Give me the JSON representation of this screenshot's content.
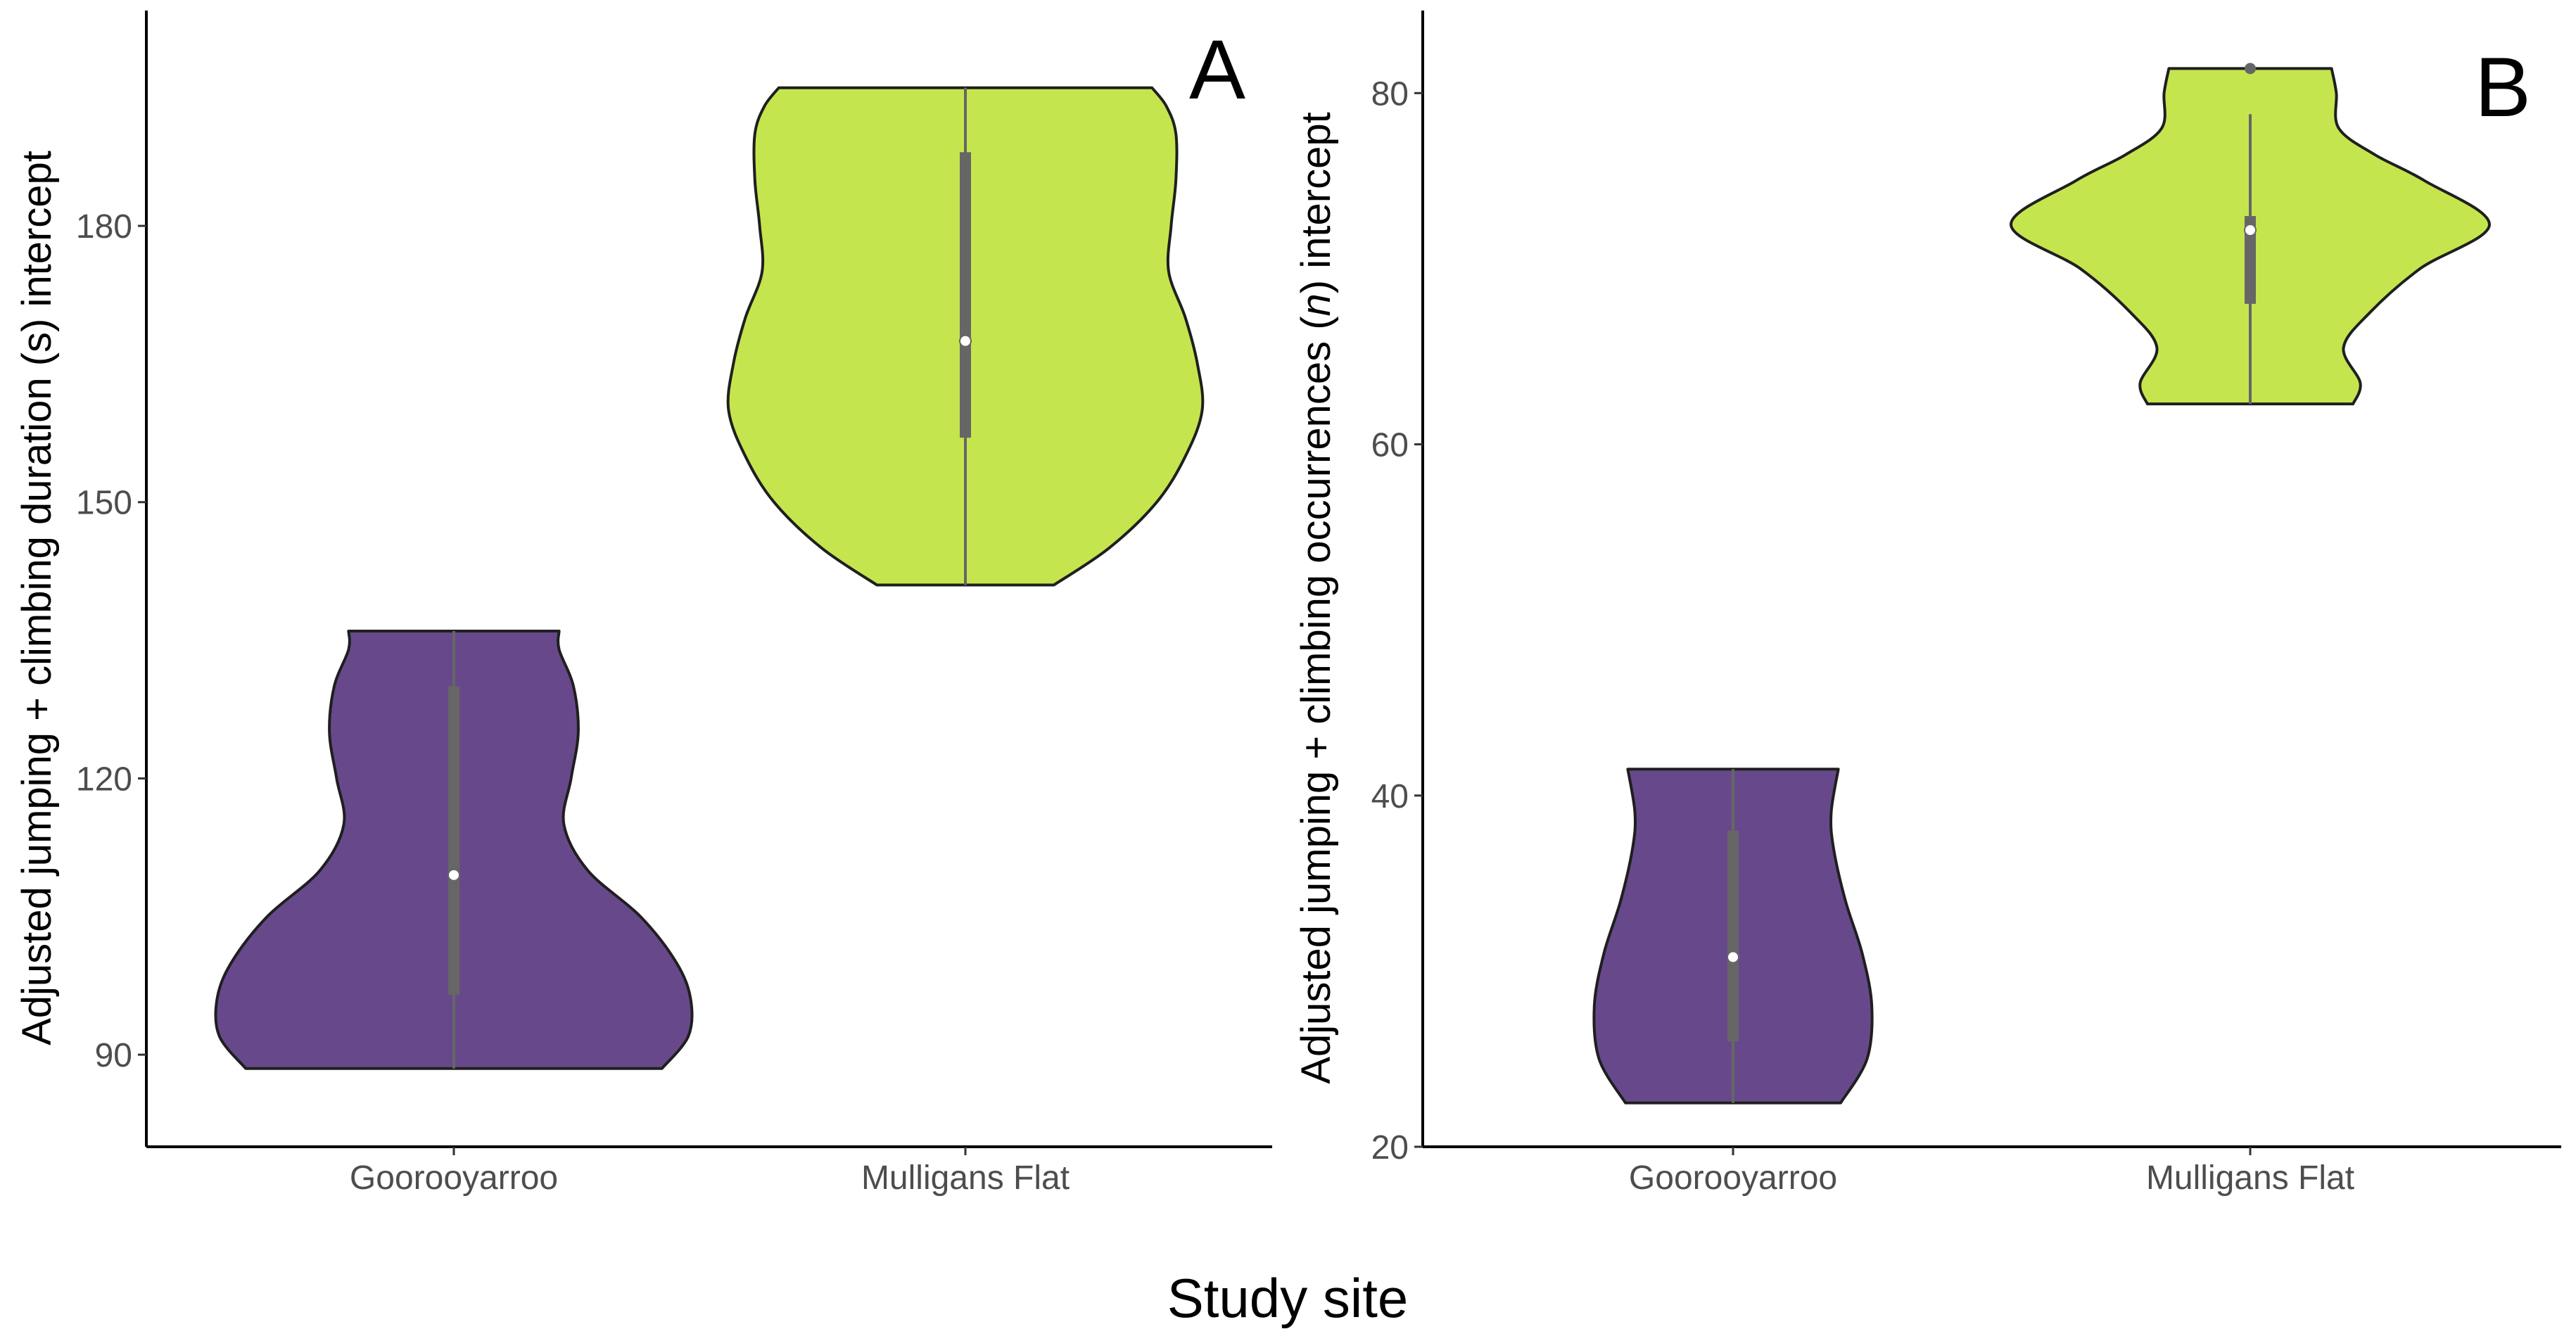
{
  "figure": {
    "xlabel": "Study site",
    "colors": {
      "Goorooyarroo": "#67498B",
      "Mulligans Flat": "#C5E54E",
      "outline": "#1f1f1f",
      "box": "#666666",
      "median": "#ffffff",
      "axis": "#000000",
      "tick_text": "#4d4d4d"
    }
  },
  "chart_data": [
    {
      "type": "violin",
      "panel": "A",
      "xlabel": "",
      "ylabel_parts": [
        "Adjusted jumping + climbing duration (s) intercept"
      ],
      "ylim": [
        80,
        203
      ],
      "yticks": [
        90,
        120,
        150,
        180
      ],
      "grid": false,
      "categories": [
        "Goorooyarroo",
        "Mulligans Flat"
      ],
      "series": [
        {
          "category": "Goorooyarroo",
          "min": 88.5,
          "max": 136,
          "q1": 96.5,
          "median": 109.5,
          "q3": 130,
          "whisker_low": 88.5,
          "whisker_high": 136,
          "outliers": [],
          "density": [
            [
              88.5,
              0.87
            ],
            [
              92,
              0.98
            ],
            [
              96,
              0.99
            ],
            [
              100,
              0.93
            ],
            [
              105,
              0.78
            ],
            [
              110,
              0.56
            ],
            [
              115,
              0.46
            ],
            [
              120,
              0.49
            ],
            [
              125,
              0.52
            ],
            [
              130,
              0.5
            ],
            [
              134,
              0.44
            ],
            [
              136,
              0.44
            ]
          ]
        },
        {
          "category": "Mulligans Flat",
          "min": 141,
          "max": 195,
          "q1": 157,
          "median": 167.5,
          "q3": 188,
          "whisker_low": 141,
          "whisker_high": 195,
          "outliers": [],
          "density": [
            [
              141,
              0.37
            ],
            [
              145,
              0.6
            ],
            [
              150,
              0.8
            ],
            [
              155,
              0.92
            ],
            [
              160,
              0.99
            ],
            [
              165,
              0.97
            ],
            [
              170,
              0.92
            ],
            [
              175,
              0.85
            ],
            [
              180,
              0.86
            ],
            [
              185,
              0.88
            ],
            [
              190,
              0.88
            ],
            [
              193,
              0.84
            ],
            [
              195,
              0.78
            ]
          ]
        }
      ]
    },
    {
      "type": "violin",
      "panel": "B",
      "xlabel": "",
      "ylabel_parts": [
        "Adjusted jumping + climbing occurrences (",
        "n",
        ") intercept"
      ],
      "ylim": [
        20,
        84.5
      ],
      "yticks": [
        20,
        40,
        60,
        80
      ],
      "grid": false,
      "categories": [
        "Goorooyarroo",
        "Mulligans Flat"
      ],
      "series": [
        {
          "category": "Goorooyarroo",
          "min": 22.5,
          "max": 41.5,
          "q1": 26,
          "median": 30.8,
          "q3": 38,
          "whisker_low": 22.5,
          "whisker_high": 41.5,
          "outliers": [],
          "density": [
            [
              22.5,
              0.45
            ],
            [
              25,
              0.56
            ],
            [
              28,
              0.58
            ],
            [
              31,
              0.54
            ],
            [
              34,
              0.47
            ],
            [
              37,
              0.42
            ],
            [
              39,
              0.41
            ],
            [
              41.5,
              0.44
            ]
          ]
        },
        {
          "category": "Mulligans Flat",
          "min": 62.3,
          "max": 81.4,
          "q1": 68,
          "median": 72.2,
          "q3": 73,
          "whisker_low": 62.3,
          "whisker_high": 78.8,
          "outliers": [
            81.4
          ],
          "density": [
            [
              62.3,
              0.43
            ],
            [
              63.5,
              0.46
            ],
            [
              65.5,
              0.39
            ],
            [
              67.5,
              0.5
            ],
            [
              70,
              0.71
            ],
            [
              72.5,
              1.0
            ],
            [
              75,
              0.73
            ],
            [
              76.5,
              0.52
            ],
            [
              78,
              0.37
            ],
            [
              80,
              0.36
            ],
            [
              81.4,
              0.34
            ]
          ]
        }
      ]
    }
  ]
}
